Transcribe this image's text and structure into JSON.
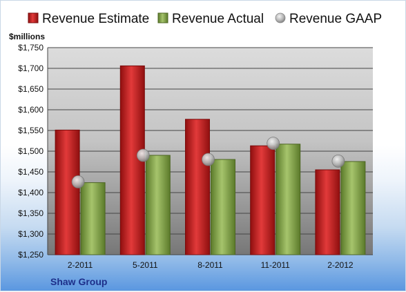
{
  "chart_data": {
    "type": "bar",
    "ylabel": "$millions",
    "company": "Shaw Group",
    "categories": [
      "2-2011",
      "5-2011",
      "8-2011",
      "11-2011",
      "2-2012"
    ],
    "series": [
      {
        "name": "Revenue Estimate",
        "kind": "bar",
        "color": "#d42a2a",
        "values": [
          1551,
          1706,
          1577,
          1513,
          1455
        ]
      },
      {
        "name": "Revenue Actual",
        "kind": "bar",
        "color": "#8cab55",
        "values": [
          1424,
          1490,
          1480,
          1517,
          1475
        ]
      },
      {
        "name": "Revenue GAAP",
        "kind": "marker",
        "color": "#c0c0c0",
        "values": [
          1426,
          1490,
          1480,
          1519,
          1476
        ]
      }
    ],
    "ylim": [
      1250,
      1750
    ],
    "yticks": [
      1250,
      1300,
      1350,
      1400,
      1450,
      1500,
      1550,
      1600,
      1650,
      1700,
      1750
    ],
    "ytick_labels": [
      "$1,250",
      "$1,300",
      "$1,350",
      "$1,400",
      "$1,450",
      "$1,500",
      "$1,550",
      "$1,600",
      "$1,650",
      "$1,700",
      "$1,750"
    ],
    "grid": true,
    "legend_position": "top"
  }
}
